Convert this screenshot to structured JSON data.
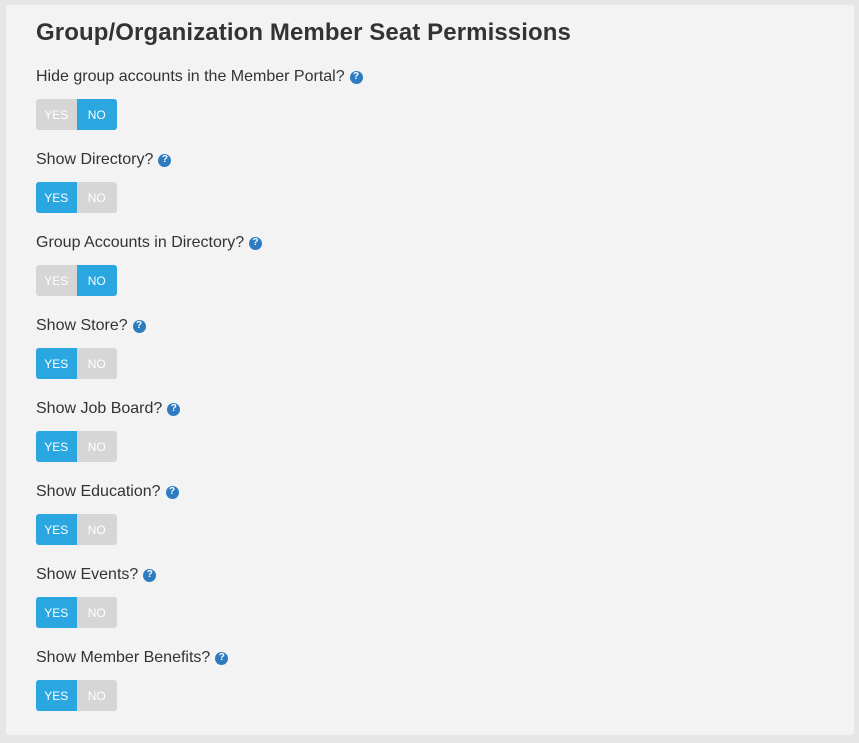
{
  "page": {
    "title": "Group/Organization Member Seat Permissions"
  },
  "colors": {
    "active": "#2aa6e0",
    "inactive": "#d6d6d6",
    "help_icon": "#2e7bbf"
  },
  "help_icon_glyph": "?",
  "settings": [
    {
      "label": "Hide group accounts in the Member Portal?",
      "yes_label": "YES",
      "no_label": "NO",
      "selected": "NO"
    },
    {
      "label": "Show Directory?",
      "yes_label": "YES",
      "no_label": "NO",
      "selected": "YES"
    },
    {
      "label": "Group Accounts in Directory?",
      "yes_label": "YES",
      "no_label": "NO",
      "selected": "NO"
    },
    {
      "label": "Show Store?",
      "yes_label": "YES",
      "no_label": "NO",
      "selected": "YES"
    },
    {
      "label": "Show Job Board?",
      "yes_label": "YES",
      "no_label": "NO",
      "selected": "YES"
    },
    {
      "label": "Show Education?",
      "yes_label": "YES",
      "no_label": "NO",
      "selected": "YES"
    },
    {
      "label": "Show Events?",
      "yes_label": "YES",
      "no_label": "NO",
      "selected": "YES"
    },
    {
      "label": "Show Member Benefits?",
      "yes_label": "YES",
      "no_label": "NO",
      "selected": "YES"
    }
  ]
}
